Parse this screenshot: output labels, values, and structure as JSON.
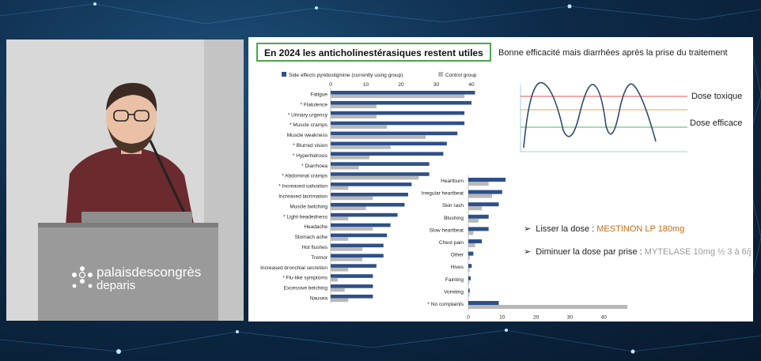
{
  "venue_logo": {
    "line1": "palaisdescongrès",
    "line2": "deparis"
  },
  "slide": {
    "title": "En 2024 les anticholinestérasiques restent utiles",
    "subtitle": "Bonne efficacité mais diarrhées après la prise du traitement",
    "dose_toxique": "Dose toxique",
    "dose_efficace": "Dose efficace",
    "bullet1_prefix": "Lisser la dose : ",
    "bullet1_highlight": "MESTINON LP 180mg",
    "bullet2_prefix": "Diminuer la dose par prise : ",
    "bullet2_highlight": "MYTELASE 10mg ½ 3 à 6/j",
    "colors": {
      "accent_red": "#e05050",
      "accent_orange": "#e8a84a",
      "accent_green": "#3fbf5f",
      "curve": "#2f4a6e",
      "highlight": "#c96a12"
    }
  },
  "chart_data": [
    {
      "type": "bar",
      "orientation": "horizontal",
      "legend_position": "top",
      "xlim": [
        0,
        45
      ],
      "xticks": [
        0,
        10,
        20,
        30,
        40
      ],
      "categories": [
        "Fatigue",
        "* Flatulence",
        "* Urinary urgency",
        "* Muscle cramps",
        "Muscle weakness",
        "* Blurred vision",
        "* Hyperhidrosis",
        "* Diarrhoea",
        "* Abdominal cramps",
        "* Increased salivation",
        "Increased lacrimation",
        "Muscle twitching",
        "* Light-headedness",
        "Headache",
        "Stomach ache",
        "Hot flushes",
        "Tremor",
        "Increased bronchial secretion",
        "* Flu-like symptoms",
        "Excessive belching",
        "Nausea"
      ],
      "series": [
        {
          "name": "Side effects pyridostigmine (currently using group)",
          "color": "#2e5089",
          "values": [
            41,
            40,
            38,
            38,
            36,
            33,
            32,
            28,
            28,
            23,
            22,
            21,
            19,
            17,
            16,
            15,
            15,
            13,
            12,
            12,
            12
          ]
        },
        {
          "name": "Control group",
          "color": "#b8b8b8",
          "values": [
            38,
            13,
            13,
            16,
            27,
            17,
            11,
            8,
            25,
            5,
            12,
            10,
            5,
            12,
            5,
            9,
            9,
            5,
            2,
            4,
            5
          ]
        }
      ]
    },
    {
      "type": "bar",
      "orientation": "horizontal",
      "xlim": [
        0,
        47
      ],
      "xticks": [
        0,
        10,
        20,
        30,
        40
      ],
      "categories": [
        "Heartburn",
        "Irregular heartbeat",
        "Skin rash",
        "Blushing",
        "Slow heartbeat",
        "Chest pain",
        "Other",
        "Hives",
        "Fainting",
        "Vomiting",
        "* No complaints"
      ],
      "series": [
        {
          "name": "Side effects pyridostigmine (currently using group)",
          "color": "#2e5089",
          "values": [
            11,
            10,
            9,
            6,
            6,
            4,
            1.5,
            1,
            0.7,
            0.4,
            9
          ]
        },
        {
          "name": "Control group",
          "color": "#b8b8b8",
          "values": [
            6,
            7,
            4,
            3,
            1.5,
            2,
            0.4,
            0.4,
            0.3,
            0.3,
            47
          ]
        }
      ]
    }
  ]
}
